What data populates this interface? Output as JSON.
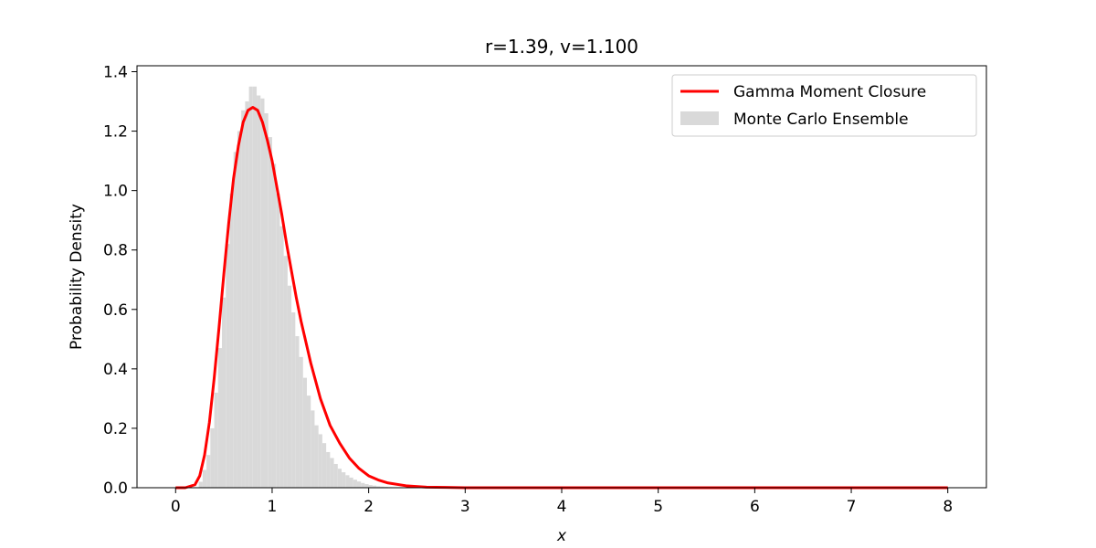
{
  "chart_data": {
    "type": "bar",
    "title": "r=1.39, v=1.100",
    "xlabel": "x",
    "ylabel": "Probability Density",
    "xlim": [
      -0.4,
      8.4
    ],
    "ylim": [
      0.0,
      1.42
    ],
    "xticks": [
      0,
      1,
      2,
      3,
      4,
      5,
      6,
      7,
      8
    ],
    "yticks": [
      0.0,
      0.2,
      0.4,
      0.6,
      0.8,
      1.0,
      1.2,
      1.4
    ],
    "xtick_labels": [
      "0",
      "1",
      "2",
      "3",
      "4",
      "5",
      "6",
      "7",
      "8"
    ],
    "ytick_labels": [
      "0.0",
      "0.2",
      "0.4",
      "0.6",
      "0.8",
      "1.0",
      "1.2",
      "1.4"
    ],
    "grid": false,
    "legend_position": "top-right",
    "series": [
      {
        "name": "Gamma Moment Closure",
        "kind": "line",
        "color": "#ff0000",
        "x": [
          0,
          0.1,
          0.2,
          0.25,
          0.3,
          0.35,
          0.4,
          0.45,
          0.5,
          0.55,
          0.6,
          0.65,
          0.7,
          0.75,
          0.8,
          0.85,
          0.9,
          0.95,
          1.0,
          1.05,
          1.1,
          1.15,
          1.2,
          1.25,
          1.3,
          1.4,
          1.5,
          1.6,
          1.7,
          1.8,
          1.9,
          2.0,
          2.1,
          2.2,
          2.4,
          2.6,
          2.8,
          3.0,
          3.5,
          4.0,
          5.0,
          6.0,
          7.0,
          8.0
        ],
        "y": [
          0.0,
          0.0,
          0.01,
          0.04,
          0.11,
          0.22,
          0.37,
          0.54,
          0.72,
          0.89,
          1.04,
          1.15,
          1.23,
          1.27,
          1.28,
          1.27,
          1.23,
          1.17,
          1.1,
          1.01,
          0.92,
          0.82,
          0.73,
          0.64,
          0.56,
          0.42,
          0.3,
          0.21,
          0.15,
          0.1,
          0.065,
          0.04,
          0.026,
          0.016,
          0.006,
          0.002,
          0.001,
          0.0,
          0.0,
          0.0,
          0.0,
          0.0,
          0.0,
          0.0
        ]
      },
      {
        "name": "Monte Carlo Ensemble",
        "kind": "histogram",
        "color": "#d9d9d9",
        "bin_width": 0.04,
        "bin_starts": [
          0.24,
          0.28,
          0.32,
          0.36,
          0.4,
          0.44,
          0.48,
          0.52,
          0.56,
          0.6,
          0.64,
          0.68,
          0.72,
          0.76,
          0.8,
          0.84,
          0.88,
          0.92,
          0.96,
          1.0,
          1.04,
          1.08,
          1.12,
          1.16,
          1.2,
          1.24,
          1.28,
          1.32,
          1.36,
          1.4,
          1.44,
          1.48,
          1.52,
          1.56,
          1.6,
          1.64,
          1.68,
          1.72,
          1.76,
          1.8,
          1.84,
          1.88,
          1.92,
          1.96,
          2.0,
          2.04,
          2.08,
          2.12,
          2.16,
          2.2,
          2.24,
          2.28
        ],
        "values": [
          0.02,
          0.06,
          0.11,
          0.2,
          0.32,
          0.47,
          0.64,
          0.82,
          0.99,
          1.13,
          1.2,
          1.27,
          1.3,
          1.35,
          1.35,
          1.32,
          1.31,
          1.26,
          1.18,
          1.09,
          0.99,
          0.88,
          0.78,
          0.68,
          0.59,
          0.51,
          0.44,
          0.37,
          0.31,
          0.26,
          0.21,
          0.18,
          0.15,
          0.12,
          0.1,
          0.08,
          0.064,
          0.052,
          0.042,
          0.034,
          0.027,
          0.021,
          0.016,
          0.012,
          0.009,
          0.007,
          0.005,
          0.004,
          0.003,
          0.002,
          0.0015,
          0.001
        ]
      }
    ]
  }
}
